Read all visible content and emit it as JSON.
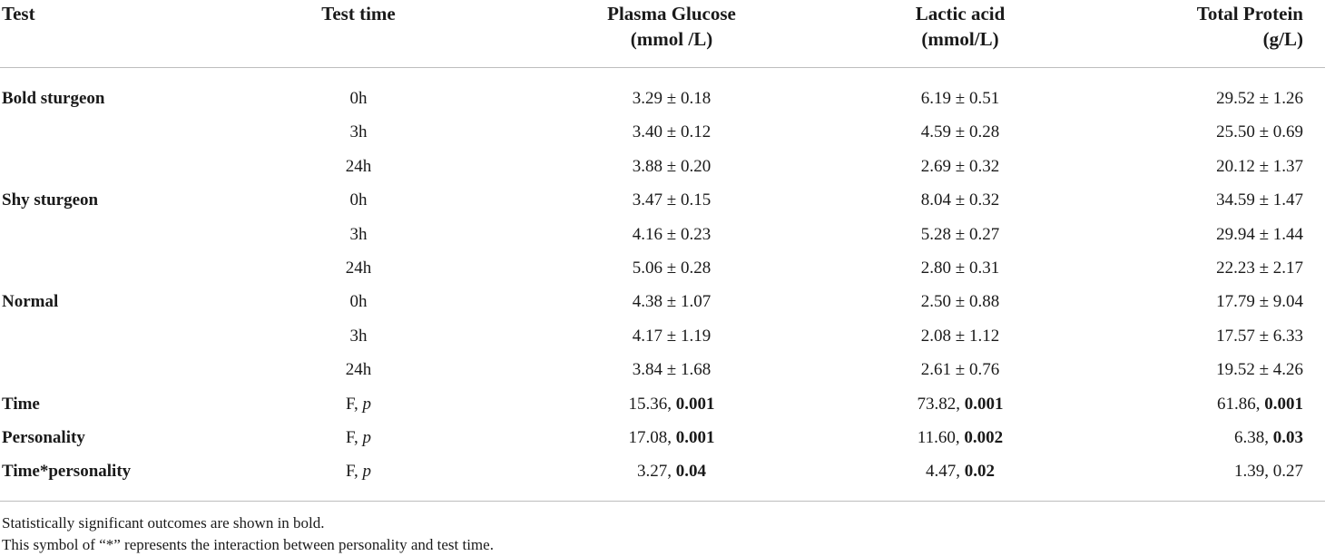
{
  "header": {
    "test": "Test",
    "test_time": "Test time",
    "glucose_line1": "Plasma Glucose",
    "glucose_line2": "(mmol /L)",
    "lactic_line1": "Lactic acid",
    "lactic_line2": "(mmol/L)",
    "protein_line1": "Total Protein",
    "protein_line2": "(g/L)"
  },
  "rows": [
    {
      "test": "Bold sturgeon",
      "time": "0h",
      "glucose": "3.29 ± 0.18",
      "lactic": "6.19 ± 0.51",
      "protein": "29.52 ± 1.26"
    },
    {
      "test": "",
      "time": "3h",
      "glucose": "3.40 ± 0.12",
      "lactic": "4.59 ± 0.28",
      "protein": "25.50 ± 0.69"
    },
    {
      "test": "",
      "time": "24h",
      "glucose": "3.88 ± 0.20",
      "lactic": "2.69 ± 0.32",
      "protein": "20.12 ± 1.37"
    },
    {
      "test": "Shy sturgeon",
      "time": "0h",
      "glucose": "3.47 ± 0.15",
      "lactic": "8.04 ± 0.32",
      "protein": "34.59 ± 1.47"
    },
    {
      "test": "",
      "time": "3h",
      "glucose": "4.16 ± 0.23",
      "lactic": "5.28 ± 0.27",
      "protein": "29.94 ± 1.44"
    },
    {
      "test": "",
      "time": "24h",
      "glucose": "5.06 ± 0.28",
      "lactic": "2.80 ± 0.31",
      "protein": "22.23 ± 2.17"
    },
    {
      "test": "Normal",
      "time": "0h",
      "glucose": "4.38 ± 1.07",
      "lactic": "2.50 ± 0.88",
      "protein": "17.79 ± 9.04"
    },
    {
      "test": "",
      "time": "3h",
      "glucose": "4.17 ± 1.19",
      "lactic": "2.08 ± 1.12",
      "protein": "17.57 ± 6.33"
    },
    {
      "test": "",
      "time": "24h",
      "glucose": "3.84 ± 1.68",
      "lactic": "2.61 ± 0.76",
      "protein": "19.52 ± 4.26"
    }
  ],
  "stats": [
    {
      "test": "Time",
      "time_a": "F, ",
      "time_b": "p",
      "glucose_f": "15.36, ",
      "glucose_p": "0.001",
      "glucose_p_bold": true,
      "lactic_f": "73.82, ",
      "lactic_p": "0.001",
      "lactic_p_bold": true,
      "protein_f": "61.86, ",
      "protein_p": "0.001",
      "protein_p_bold": true
    },
    {
      "test": "Personality",
      "time_a": "F, ",
      "time_b": "p",
      "glucose_f": "17.08, ",
      "glucose_p": "0.001",
      "glucose_p_bold": true,
      "lactic_f": "11.60, ",
      "lactic_p": "0.002",
      "lactic_p_bold": true,
      "protein_f": "6.38, ",
      "protein_p": "0.03",
      "protein_p_bold": true
    },
    {
      "test": "Time*personality",
      "time_a": "F, ",
      "time_b": "p",
      "glucose_f": "3.27, ",
      "glucose_p": "0.04",
      "glucose_p_bold": true,
      "lactic_f": "4.47, ",
      "lactic_p": "0.02",
      "lactic_p_bold": true,
      "protein_f": "1.39, ",
      "protein_p": "0.27",
      "protein_p_bold": false
    }
  ],
  "footnotes": [
    "Statistically significant outcomes are shown in bold.",
    "This symbol of “*” represents the interaction between personality and test time."
  ]
}
